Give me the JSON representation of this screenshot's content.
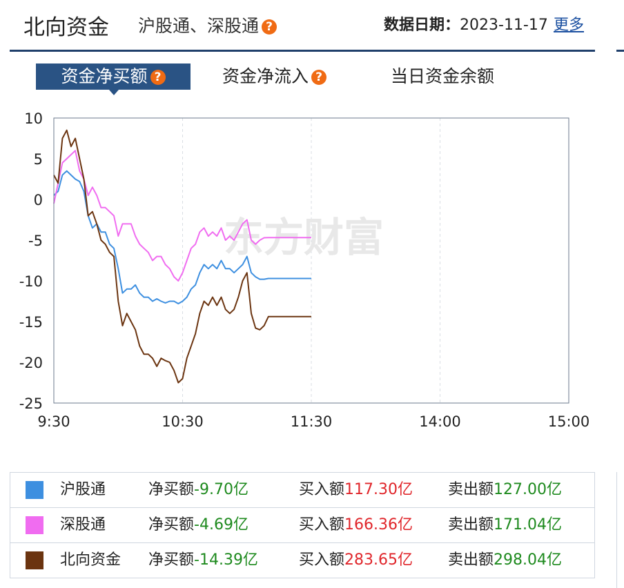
{
  "header": {
    "title": "北向资金",
    "subtitle": "沪股通、深股通",
    "date_label": "数据日期：",
    "date_value": "2023-11-17",
    "more_link": "更多"
  },
  "tabs": [
    {
      "label": "资金净买额",
      "active": true,
      "has_help": true
    },
    {
      "label": "资金净流入",
      "active": false,
      "has_help": true
    },
    {
      "label": "当日资金余额",
      "active": false,
      "has_help": false
    }
  ],
  "colors": {
    "hk_sh": "#3d8fe0",
    "hk_sz": "#f06cf0",
    "north": "#6b3410",
    "accent": "#2a5384",
    "help": "#f06b14"
  },
  "watermark": "东方财富",
  "chart_data": {
    "type": "line",
    "title": "",
    "xlabel": "",
    "ylabel": "",
    "ylim": [
      -25,
      10
    ],
    "yticks": [
      "10",
      "5",
      "0",
      "-5",
      "-10",
      "-15",
      "-20",
      "-25"
    ],
    "xticks": [
      "9:30",
      "10:30",
      "11:30",
      "14:00",
      "15:00"
    ],
    "x_minutes": [
      0,
      2,
      4,
      6,
      8,
      10,
      12,
      14,
      16,
      18,
      20,
      22,
      24,
      26,
      28,
      30,
      32,
      34,
      36,
      38,
      40,
      42,
      44,
      46,
      48,
      50,
      52,
      54,
      56,
      58,
      60,
      62,
      64,
      66,
      68,
      70,
      72,
      74,
      76,
      78,
      80,
      82,
      84,
      86,
      88,
      90,
      92,
      94,
      96,
      98,
      100,
      102,
      104,
      106,
      108,
      110,
      112,
      114,
      116,
      118,
      120
    ],
    "series": [
      {
        "name": "沪股通",
        "color_key": "hk_sh",
        "values": [
          0.5,
          1.0,
          3.0,
          3.5,
          3.0,
          2.5,
          2.2,
          1.0,
          -2.0,
          -3.5,
          -3.0,
          -4.0,
          -4.0,
          -5.5,
          -6.0,
          -8.5,
          -11.5,
          -11.0,
          -11.0,
          -10.5,
          -11.5,
          -12.0,
          -12.0,
          -12.5,
          -12.2,
          -12.5,
          -12.7,
          -12.5,
          -12.5,
          -12.8,
          -12.5,
          -12.0,
          -11.0,
          -10.5,
          -9.0,
          -8.0,
          -8.5,
          -8.0,
          -8.5,
          -7.5,
          -8.5,
          -8.5,
          -9.0,
          -8.5,
          -8.0,
          -7.0,
          -9.0,
          -9.5,
          -9.8,
          -9.8,
          -9.7,
          -9.7,
          -9.7,
          -9.7,
          -9.7,
          -9.7,
          -9.7,
          -9.7,
          -9.7,
          -9.7,
          -9.7
        ]
      },
      {
        "name": "深股通",
        "color_key": "hk_sz",
        "values": [
          -0.5,
          2.0,
          4.5,
          5.0,
          5.5,
          6.0,
          3.5,
          2.5,
          0.5,
          1.5,
          0.5,
          -1.0,
          -1.0,
          -1.5,
          -2.0,
          -4.5,
          -3.0,
          -3.0,
          -3.0,
          -4.5,
          -5.5,
          -6.0,
          -6.5,
          -7.5,
          -7.0,
          -7.0,
          -8.0,
          -8.5,
          -9.5,
          -10.0,
          -9.0,
          -7.5,
          -6.0,
          -5.5,
          -4.0,
          -3.5,
          -4.5,
          -4.0,
          -4.5,
          -3.5,
          -5.0,
          -4.5,
          -5.0,
          -4.0,
          -3.0,
          -2.5,
          -5.0,
          -5.5,
          -5.0,
          -4.7,
          -4.69,
          -4.69,
          -4.69,
          -4.69,
          -4.69,
          -4.69,
          -4.69,
          -4.69,
          -4.69,
          -4.69,
          -4.69
        ]
      },
      {
        "name": "北向资金",
        "color_key": "north",
        "values": [
          3.0,
          2.0,
          7.5,
          8.5,
          6.5,
          7.5,
          5.0,
          2.5,
          -2.0,
          -1.5,
          -3.0,
          -5.0,
          -5.5,
          -6.5,
          -7.0,
          -12.5,
          -15.5,
          -14.0,
          -15.0,
          -16.0,
          -18.0,
          -19.0,
          -19.0,
          -19.5,
          -20.5,
          -19.5,
          -19.8,
          -20.0,
          -21.0,
          -22.5,
          -22.0,
          -19.5,
          -18.0,
          -16.5,
          -14.0,
          -12.5,
          -13.0,
          -12.0,
          -13.0,
          -12.0,
          -13.5,
          -14.0,
          -13.5,
          -12.0,
          -10.0,
          -9.0,
          -14.0,
          -15.8,
          -16.0,
          -15.5,
          -14.39,
          -14.39,
          -14.39,
          -14.39,
          -14.39,
          -14.39,
          -14.39,
          -14.39,
          -14.39,
          -14.39,
          -14.39
        ]
      }
    ],
    "plotted_until_minute": 120,
    "session_minutes_total": 240
  },
  "legend": [
    {
      "name": "沪股通",
      "color_key": "hk_sh",
      "net_label": "净买额",
      "net_value": "-9.70亿",
      "buy_label": "买入额",
      "buy_value": "117.30亿",
      "sell_label": "卖出额",
      "sell_value": "127.00亿"
    },
    {
      "name": "深股通",
      "color_key": "hk_sz",
      "net_label": "净买额",
      "net_value": "-4.69亿",
      "buy_label": "买入额",
      "buy_value": "166.36亿",
      "sell_label": "卖出额",
      "sell_value": "171.04亿"
    },
    {
      "name": "北向资金",
      "color_key": "north",
      "net_label": "净买额",
      "net_value": "-14.39亿",
      "buy_label": "买入额",
      "buy_value": "283.65亿",
      "sell_label": "卖出额",
      "sell_value": "298.04亿"
    }
  ]
}
